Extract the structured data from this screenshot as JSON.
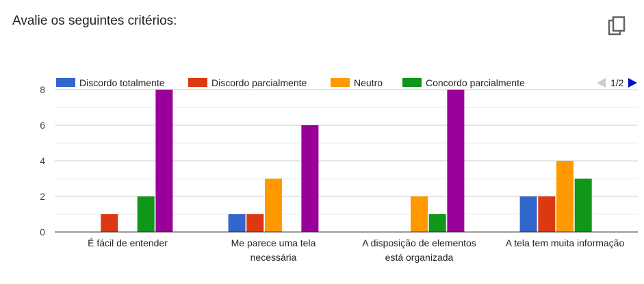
{
  "header": {
    "title": "Avalie os seguintes critérios:",
    "copy_icon": "copy-icon"
  },
  "legend": {
    "page_indicator": "1/2",
    "prev_icon": "triangle-left-icon",
    "next_icon": "triangle-right-icon"
  },
  "chart_data": {
    "type": "bar",
    "categories": [
      [
        "É fácil de entender"
      ],
      [
        "Me parece uma tela",
        "necessária"
      ],
      [
        "A disposição de elementos",
        "está organizada"
      ],
      [
        "A tela tem muita informação"
      ]
    ],
    "series": [
      {
        "name": "Discordo totalmente",
        "color": "#3366cc",
        "values": [
          0,
          1,
          0,
          2
        ]
      },
      {
        "name": "Discordo parcialmente",
        "color": "#dc3912",
        "values": [
          1,
          1,
          0,
          2
        ]
      },
      {
        "name": "Neutro",
        "color": "#ff9900",
        "values": [
          0,
          3,
          2,
          4
        ]
      },
      {
        "name": "Concordo parcialmente",
        "color": "#109618",
        "values": [
          2,
          0,
          1,
          3
        ]
      },
      {
        "color": "#990099",
        "values": [
          8,
          6,
          8,
          0
        ]
      }
    ],
    "ylim": [
      0,
      8
    ],
    "yticks": [
      0,
      2,
      4,
      6,
      8
    ],
    "grid": true,
    "legend_position": "top"
  }
}
